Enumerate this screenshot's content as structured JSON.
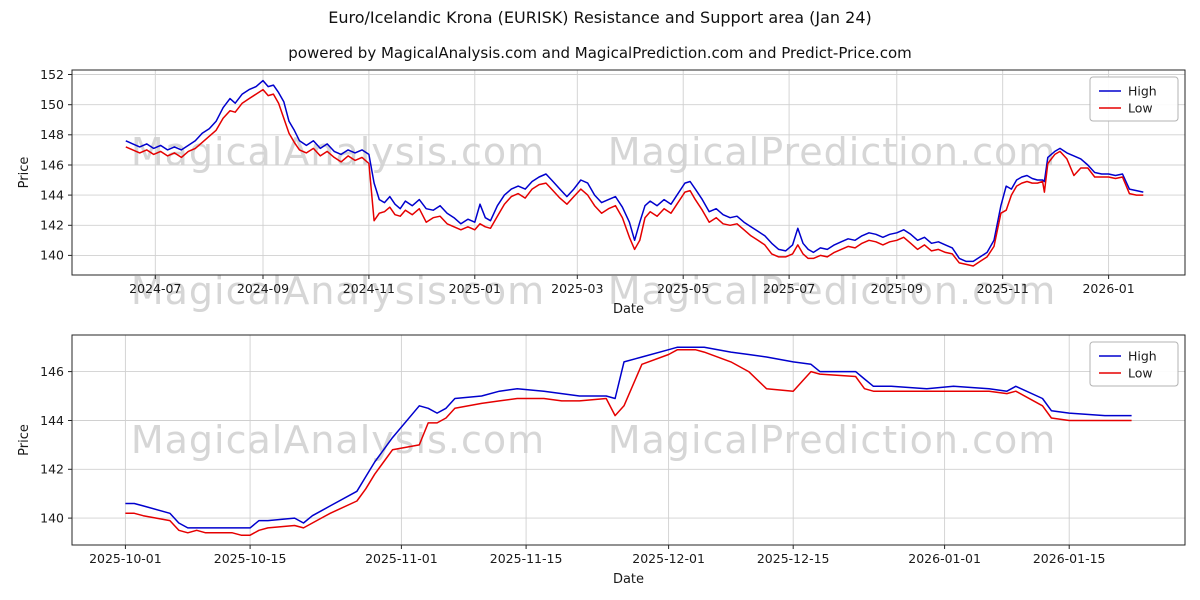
{
  "figure": {
    "title": "Euro/Icelandic Krona (EURISK) Resistance and Support area (Jan 24)",
    "subtitle": "powered by MagicalAnalysis.com and MagicalPrediction.com and Predict-Price.com"
  },
  "watermarks": {
    "left": "MagicalAnalysis.com",
    "right": "MagicalPrediction.com"
  },
  "colors": {
    "high": "#0000CD",
    "low": "#E50000",
    "grid": "#d0d0d0",
    "spine": "#262626"
  },
  "chart_data": [
    {
      "type": "line",
      "name": "overview-chart",
      "title": "",
      "xlabel": "Date",
      "ylabel": "Price",
      "ylim": [
        138.7,
        152.3
      ],
      "yticks": [
        140,
        142,
        144,
        146,
        148,
        150,
        152
      ],
      "xlim": [
        "2024-05-14",
        "2026-02-14"
      ],
      "xticks": [
        [
          "2024-07-01",
          "2024-07"
        ],
        [
          "2024-09-01",
          "2024-09"
        ],
        [
          "2024-11-01",
          "2024-11"
        ],
        [
          "2025-01-01",
          "2025-01"
        ],
        [
          "2025-03-01",
          "2025-03"
        ],
        [
          "2025-05-01",
          "2025-05"
        ],
        [
          "2025-07-01",
          "2025-07"
        ],
        [
          "2025-09-01",
          "2025-09"
        ],
        [
          "2025-11-01",
          "2025-11"
        ],
        [
          "2026-01-01",
          "2026-01"
        ]
      ],
      "grid": true,
      "legend_position": "upper right",
      "x": [
        "2024-06-14",
        "2024-06-18",
        "2024-06-22",
        "2024-06-26",
        "2024-06-30",
        "2024-07-04",
        "2024-07-08",
        "2024-07-12",
        "2024-07-16",
        "2024-07-20",
        "2024-07-24",
        "2024-07-28",
        "2024-08-01",
        "2024-08-05",
        "2024-08-09",
        "2024-08-13",
        "2024-08-16",
        "2024-08-20",
        "2024-08-24",
        "2024-08-28",
        "2024-09-01",
        "2024-09-04",
        "2024-09-07",
        "2024-09-10",
        "2024-09-13",
        "2024-09-16",
        "2024-09-19",
        "2024-09-22",
        "2024-09-26",
        "2024-09-30",
        "2024-10-04",
        "2024-10-08",
        "2024-10-12",
        "2024-10-16",
        "2024-10-20",
        "2024-10-24",
        "2024-10-28",
        "2024-11-01",
        "2024-11-04",
        "2024-11-07",
        "2024-11-10",
        "2024-11-13",
        "2024-11-16",
        "2024-11-19",
        "2024-11-22",
        "2024-11-26",
        "2024-11-30",
        "2024-12-04",
        "2024-12-08",
        "2024-12-12",
        "2024-12-16",
        "2024-12-20",
        "2024-12-24",
        "2024-12-28",
        "2025-01-01",
        "2025-01-04",
        "2025-01-07",
        "2025-01-10",
        "2025-01-14",
        "2025-01-18",
        "2025-01-22",
        "2025-01-26",
        "2025-01-30",
        "2025-02-03",
        "2025-02-07",
        "2025-02-11",
        "2025-02-15",
        "2025-02-19",
        "2025-02-23",
        "2025-02-27",
        "2025-03-03",
        "2025-03-07",
        "2025-03-11",
        "2025-03-15",
        "2025-03-19",
        "2025-03-23",
        "2025-03-27",
        "2025-03-31",
        "2025-04-03",
        "2025-04-06",
        "2025-04-09",
        "2025-04-12",
        "2025-04-16",
        "2025-04-20",
        "2025-04-24",
        "2025-04-28",
        "2025-05-02",
        "2025-05-05",
        "2025-05-08",
        "2025-05-12",
        "2025-05-16",
        "2025-05-20",
        "2025-05-24",
        "2025-05-28",
        "2025-06-01",
        "2025-06-05",
        "2025-06-09",
        "2025-06-13",
        "2025-06-17",
        "2025-06-21",
        "2025-06-25",
        "2025-06-29",
        "2025-07-03",
        "2025-07-06",
        "2025-07-09",
        "2025-07-12",
        "2025-07-15",
        "2025-07-19",
        "2025-07-23",
        "2025-07-27",
        "2025-07-31",
        "2025-08-04",
        "2025-08-08",
        "2025-08-12",
        "2025-08-16",
        "2025-08-20",
        "2025-08-24",
        "2025-08-28",
        "2025-09-01",
        "2025-09-05",
        "2025-09-09",
        "2025-09-13",
        "2025-09-17",
        "2025-09-21",
        "2025-09-25",
        "2025-09-29",
        "2025-10-03",
        "2025-10-07",
        "2025-10-11",
        "2025-10-15",
        "2025-10-19",
        "2025-10-23",
        "2025-10-27",
        "2025-10-31",
        "2025-11-03",
        "2025-11-06",
        "2025-11-09",
        "2025-11-12",
        "2025-11-15",
        "2025-11-18",
        "2025-11-21",
        "2025-11-24",
        "2025-11-25",
        "2025-11-27",
        "2025-12-01",
        "2025-12-04",
        "2025-12-08",
        "2025-12-12",
        "2025-12-16",
        "2025-12-20",
        "2025-12-24",
        "2025-12-28",
        "2026-01-01",
        "2026-01-05",
        "2026-01-09",
        "2026-01-13",
        "2026-01-17",
        "2026-01-21"
      ],
      "series": [
        {
          "name": "High",
          "color": "#0000CD",
          "values": [
            147.6,
            147.4,
            147.2,
            147.4,
            147.1,
            147.3,
            147.0,
            147.2,
            147.0,
            147.3,
            147.6,
            148.1,
            148.4,
            148.9,
            149.8,
            150.4,
            150.1,
            150.7,
            151.0,
            151.2,
            151.6,
            151.2,
            151.3,
            150.8,
            150.2,
            148.9,
            148.3,
            147.6,
            147.3,
            147.6,
            147.1,
            147.4,
            146.9,
            146.7,
            147.0,
            146.8,
            147.0,
            146.7,
            144.8,
            143.7,
            143.5,
            143.9,
            143.4,
            143.1,
            143.6,
            143.3,
            143.7,
            143.1,
            143.0,
            143.3,
            142.8,
            142.5,
            142.1,
            142.4,
            142.2,
            143.4,
            142.5,
            142.3,
            143.3,
            144.0,
            144.4,
            144.6,
            144.4,
            144.9,
            145.2,
            145.4,
            144.9,
            144.4,
            143.9,
            144.4,
            145.0,
            144.8,
            144.0,
            143.5,
            143.7,
            143.9,
            143.2,
            142.2,
            141.0,
            142.2,
            143.3,
            143.6,
            143.3,
            143.7,
            143.4,
            144.1,
            144.8,
            144.9,
            144.4,
            143.7,
            142.9,
            143.1,
            142.7,
            142.5,
            142.6,
            142.2,
            141.9,
            141.6,
            141.3,
            140.8,
            140.4,
            140.3,
            140.7,
            141.8,
            140.8,
            140.4,
            140.2,
            140.5,
            140.4,
            140.7,
            140.9,
            141.1,
            141.0,
            141.3,
            141.5,
            141.4,
            141.2,
            141.4,
            141.5,
            141.7,
            141.4,
            141.0,
            141.2,
            140.8,
            140.9,
            140.7,
            140.5,
            139.8,
            139.6,
            139.6,
            139.9,
            140.2,
            141.0,
            143.3,
            144.6,
            144.4,
            145.0,
            145.2,
            145.3,
            145.1,
            145.0,
            145.0,
            144.9,
            146.5,
            146.9,
            147.1,
            146.8,
            146.6,
            146.4,
            146.0,
            145.5,
            145.4,
            145.4,
            145.3,
            145.4,
            144.4,
            144.3,
            144.2
          ]
        },
        {
          "name": "Low",
          "color": "#E50000",
          "values": [
            147.2,
            147.0,
            146.8,
            147.0,
            146.7,
            146.9,
            146.6,
            146.8,
            146.5,
            146.9,
            147.1,
            147.5,
            147.9,
            148.3,
            149.1,
            149.6,
            149.5,
            150.1,
            150.4,
            150.7,
            151.0,
            150.6,
            150.7,
            150.1,
            149.1,
            148.1,
            147.5,
            147.0,
            146.8,
            147.1,
            146.6,
            146.9,
            146.5,
            146.2,
            146.6,
            146.3,
            146.5,
            146.1,
            142.3,
            142.8,
            142.9,
            143.2,
            142.7,
            142.6,
            143.0,
            142.7,
            143.1,
            142.2,
            142.5,
            142.6,
            142.1,
            141.9,
            141.7,
            141.9,
            141.7,
            142.1,
            141.9,
            141.8,
            142.6,
            143.4,
            143.9,
            144.1,
            143.8,
            144.4,
            144.7,
            144.8,
            144.3,
            143.8,
            143.4,
            143.9,
            144.4,
            144.0,
            143.3,
            142.8,
            143.1,
            143.3,
            142.5,
            141.2,
            140.4,
            141.0,
            142.5,
            142.9,
            142.6,
            143.1,
            142.8,
            143.5,
            144.2,
            144.3,
            143.7,
            143.0,
            142.2,
            142.5,
            142.1,
            142.0,
            142.1,
            141.7,
            141.3,
            141.0,
            140.7,
            140.1,
            139.9,
            139.9,
            140.1,
            140.7,
            140.1,
            139.8,
            139.8,
            140.0,
            139.9,
            140.2,
            140.4,
            140.6,
            140.5,
            140.8,
            141.0,
            140.9,
            140.7,
            140.9,
            141.0,
            141.2,
            140.8,
            140.4,
            140.7,
            140.3,
            140.4,
            140.2,
            140.1,
            139.5,
            139.4,
            139.3,
            139.6,
            139.9,
            140.6,
            142.8,
            143.0,
            144.0,
            144.6,
            144.8,
            144.9,
            144.8,
            144.8,
            144.9,
            144.2,
            146.1,
            146.7,
            146.9,
            146.4,
            145.3,
            145.8,
            145.8,
            145.2,
            145.2,
            145.2,
            145.1,
            145.2,
            144.1,
            144.0,
            144.0
          ]
        }
      ]
    },
    {
      "type": "line",
      "name": "detail-chart",
      "title": "",
      "xlabel": "Date",
      "ylabel": "Price",
      "ylim": [
        138.9,
        147.5
      ],
      "yticks": [
        140,
        142,
        144,
        146
      ],
      "xlim": [
        "2025-09-25",
        "2026-01-28"
      ],
      "xticks": [
        [
          "2025-10-01",
          "2025-10-01"
        ],
        [
          "2025-10-15",
          "2025-10-15"
        ],
        [
          "2025-11-01",
          "2025-11-01"
        ],
        [
          "2025-11-15",
          "2025-11-15"
        ],
        [
          "2025-12-01",
          "2025-12-01"
        ],
        [
          "2025-12-15",
          "2025-12-15"
        ],
        [
          "2026-01-01",
          "2026-01-01"
        ],
        [
          "2026-01-15",
          "2026-01-15"
        ]
      ],
      "grid": true,
      "legend_position": "upper right",
      "x": [
        "2025-10-01",
        "2025-10-02",
        "2025-10-03",
        "2025-10-06",
        "2025-10-07",
        "2025-10-08",
        "2025-10-09",
        "2025-10-10",
        "2025-10-13",
        "2025-10-14",
        "2025-10-15",
        "2025-10-16",
        "2025-10-17",
        "2025-10-20",
        "2025-10-21",
        "2025-10-22",
        "2025-10-23",
        "2025-10-24",
        "2025-10-27",
        "2025-10-28",
        "2025-10-29",
        "2025-10-30",
        "2025-10-31",
        "2025-11-03",
        "2025-11-04",
        "2025-11-05",
        "2025-11-06",
        "2025-11-07",
        "2025-11-10",
        "2025-11-12",
        "2025-11-14",
        "2025-11-17",
        "2025-11-19",
        "2025-11-21",
        "2025-11-24",
        "2025-11-25",
        "2025-11-26",
        "2025-11-28",
        "2025-12-01",
        "2025-12-02",
        "2025-12-04",
        "2025-12-05",
        "2025-12-08",
        "2025-12-10",
        "2025-12-12",
        "2025-12-15",
        "2025-12-17",
        "2025-12-18",
        "2025-12-22",
        "2025-12-23",
        "2025-12-24",
        "2025-12-26",
        "2025-12-30",
        "2026-01-02",
        "2026-01-06",
        "2026-01-08",
        "2026-01-09",
        "2026-01-12",
        "2026-01-13",
        "2026-01-15",
        "2026-01-19",
        "2026-01-22"
      ],
      "series": [
        {
          "name": "High",
          "color": "#0000CD",
          "values": [
            140.6,
            140.6,
            140.5,
            140.2,
            139.8,
            139.6,
            139.6,
            139.6,
            139.6,
            139.6,
            139.6,
            139.9,
            139.9,
            140.0,
            139.8,
            140.1,
            140.3,
            140.5,
            141.1,
            141.7,
            142.3,
            142.8,
            143.3,
            144.6,
            144.5,
            144.3,
            144.5,
            144.9,
            145.0,
            145.2,
            145.3,
            145.2,
            145.1,
            145.0,
            145.0,
            144.9,
            146.4,
            146.6,
            146.9,
            147.0,
            147.0,
            147.0,
            146.8,
            146.7,
            146.6,
            146.4,
            146.3,
            146.0,
            146.0,
            145.7,
            145.4,
            145.4,
            145.3,
            145.4,
            145.3,
            145.2,
            145.4,
            144.9,
            144.4,
            144.3,
            144.2,
            144.2
          ]
        },
        {
          "name": "Low",
          "color": "#E50000",
          "values": [
            140.2,
            140.2,
            140.1,
            139.9,
            139.5,
            139.4,
            139.5,
            139.4,
            139.4,
            139.3,
            139.3,
            139.5,
            139.6,
            139.7,
            139.6,
            139.8,
            140.0,
            140.2,
            140.7,
            141.2,
            141.8,
            142.3,
            142.8,
            143.0,
            143.9,
            143.9,
            144.1,
            144.5,
            144.7,
            144.8,
            144.9,
            144.9,
            144.8,
            144.8,
            144.9,
            144.2,
            144.6,
            146.3,
            146.7,
            146.9,
            146.9,
            146.8,
            146.4,
            146.0,
            145.3,
            145.2,
            146.0,
            145.9,
            145.8,
            145.3,
            145.2,
            145.2,
            145.2,
            145.2,
            145.2,
            145.1,
            145.2,
            144.6,
            144.1,
            144.0,
            144.0,
            144.0
          ]
        }
      ]
    }
  ]
}
